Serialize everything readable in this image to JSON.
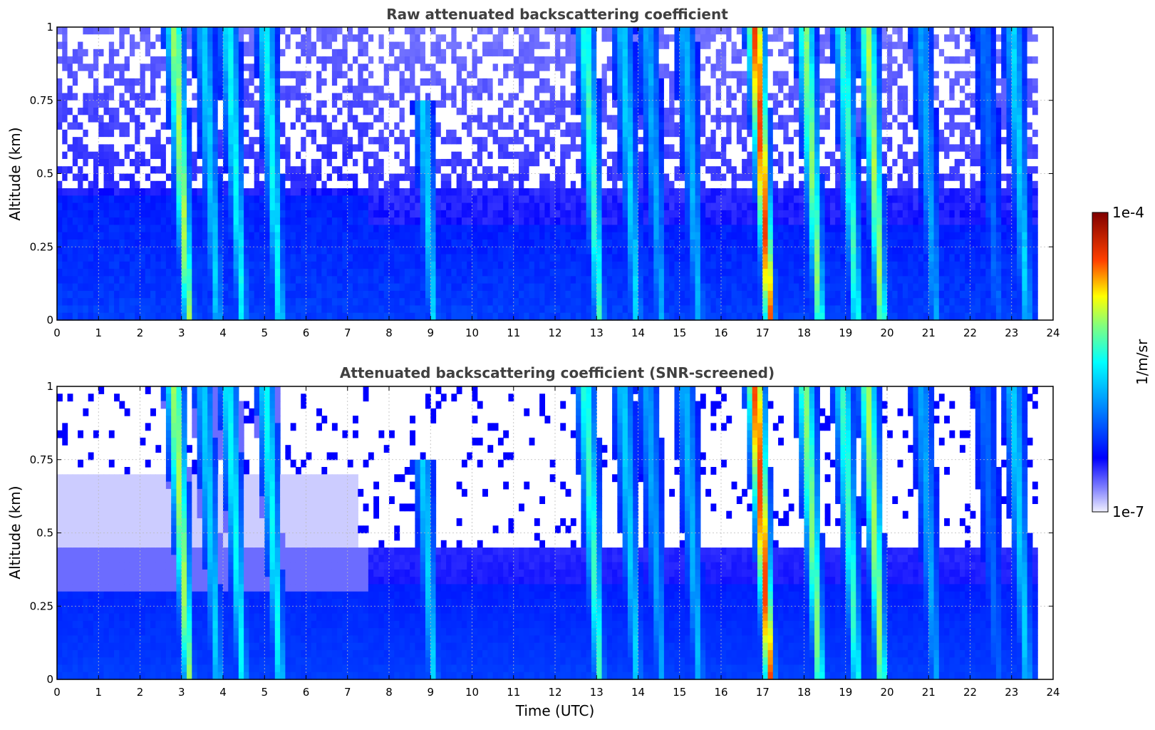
{
  "colormap_colors": [
    "#ffffff",
    "#0000ff",
    "#00ffff",
    "#ffff00",
    "#ff0000",
    "#7f0000"
  ],
  "chart_data": [
    {
      "type": "heatmap",
      "title": "Raw attenuated backscattering coefficient",
      "ylabel": "Altitude (km)",
      "xlabel": "",
      "xlim": [
        0,
        24
      ],
      "ylim": [
        0,
        1
      ],
      "xticks": [
        "0",
        "1",
        "2",
        "3",
        "4",
        "5",
        "6",
        "7",
        "8",
        "9",
        "10",
        "11",
        "12",
        "13",
        "14",
        "15",
        "16",
        "17",
        "18",
        "19",
        "20",
        "21",
        "22",
        "23",
        "24"
      ],
      "yticks": [
        "0",
        "0.25",
        "0.5",
        "0.75",
        "1"
      ],
      "yticks_values": [
        0,
        0.25,
        0.5,
        0.75,
        1
      ],
      "grid": true,
      "data_end_time": 23.6,
      "plumes": [
        {
          "t": 3.0,
          "intensity": 0.65,
          "top": 1.0
        },
        {
          "t": 3.7,
          "intensity": 0.45,
          "top": 1.0
        },
        {
          "t": 4.3,
          "intensity": 0.5,
          "top": 1.0
        },
        {
          "t": 5.2,
          "intensity": 0.5,
          "top": 1.0
        },
        {
          "t": 8.9,
          "intensity": 0.45,
          "top": 0.75
        },
        {
          "t": 12.9,
          "intensity": 0.55,
          "top": 1.0
        },
        {
          "t": 13.8,
          "intensity": 0.45,
          "top": 1.0
        },
        {
          "t": 14.4,
          "intensity": 0.4,
          "top": 1.0
        },
        {
          "t": 15.3,
          "intensity": 0.42,
          "top": 1.0
        },
        {
          "t": 17.0,
          "intensity": 0.85,
          "top": 1.0
        },
        {
          "t": 18.2,
          "intensity": 0.62,
          "top": 1.0
        },
        {
          "t": 19.1,
          "intensity": 0.55,
          "top": 1.0
        },
        {
          "t": 19.7,
          "intensity": 0.65,
          "top": 1.0
        },
        {
          "t": 21.0,
          "intensity": 0.4,
          "top": 1.0
        },
        {
          "t": 22.5,
          "intensity": 0.32,
          "top": 1.0
        },
        {
          "t": 23.2,
          "intensity": 0.45,
          "top": 1.0
        }
      ]
    },
    {
      "type": "heatmap",
      "title": "Attenuated backscattering coefficient (SNR-screened)",
      "ylabel": "Altitude (km)",
      "xlabel": "Time (UTC)",
      "xlim": [
        0,
        24
      ],
      "ylim": [
        0,
        1
      ],
      "xticks": [
        "0",
        "1",
        "2",
        "3",
        "4",
        "5",
        "6",
        "7",
        "8",
        "9",
        "10",
        "11",
        "12",
        "13",
        "14",
        "15",
        "16",
        "17",
        "18",
        "19",
        "20",
        "21",
        "22",
        "23",
        "24"
      ],
      "yticks": [
        "0",
        "0.25",
        "0.5",
        "0.75",
        "1"
      ],
      "yticks_values": [
        0,
        0.25,
        0.5,
        0.75,
        1
      ],
      "grid": true,
      "data_end_time": 23.6,
      "screened": true
    }
  ],
  "colorbar": {
    "label": "1/m/sr",
    "max_label": "1e-4",
    "min_label": "1e-7",
    "range": [
      1e-07,
      0.0001
    ],
    "scale": "log"
  }
}
